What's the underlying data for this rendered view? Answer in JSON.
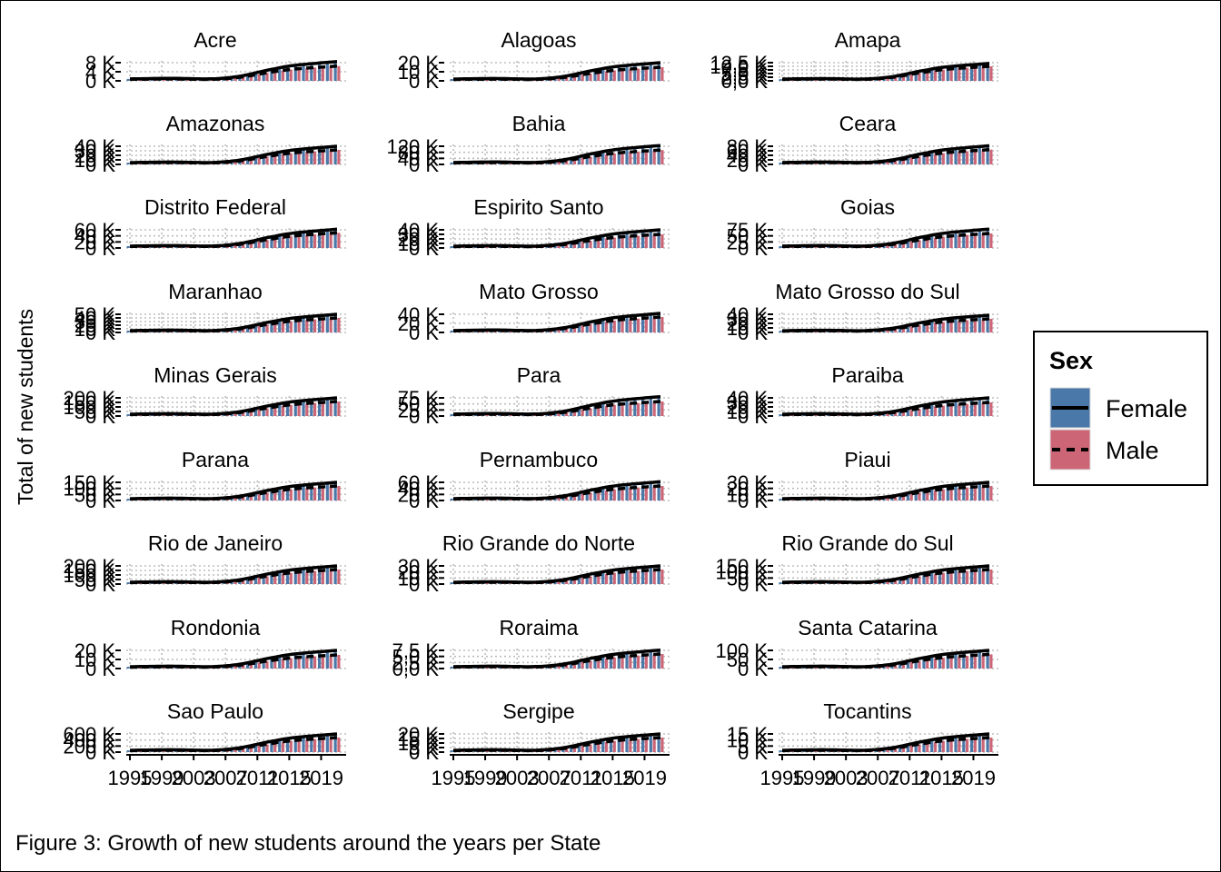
{
  "figure": {
    "caption": "Figure 3: Growth of new students around the years per State",
    "ylabel": "Total of new students"
  },
  "legend": {
    "title": "Sex",
    "entries": [
      {
        "label": "Female",
        "fill": "#4A78A8",
        "line": "solid"
      },
      {
        "label": "Male",
        "fill": "#CC6677",
        "line": "dashed"
      }
    ]
  },
  "colors": {
    "female_bar": "#4A78A8",
    "male_bar": "#CC6677",
    "grid": "#bdbdbd",
    "line": "#000000"
  },
  "chart_data": {
    "type": "bar",
    "facet_layout": {
      "rows": 9,
      "cols": 3
    },
    "x": [
      1995,
      1996,
      1997,
      1998,
      1999,
      2000,
      2001,
      2002,
      2003,
      2004,
      2005,
      2006,
      2007,
      2008,
      2009,
      2010,
      2011,
      2012,
      2013,
      2014,
      2015,
      2016,
      2017,
      2018,
      2019,
      2020,
      2021
    ],
    "x_tick_labels": [
      "1995",
      "1999",
      "2003",
      "2007",
      "2011",
      "2015",
      "2019"
    ],
    "series_overlay": "smoothed lines per sex: Female solid, Male dashed",
    "grid": true,
    "legend_position": "right",
    "y_unit": "K",
    "panels": [
      {
        "title": "Acre",
        "yticks": [
          "0 K",
          "4 K",
          "8 K"
        ],
        "ymax": 8,
        "female_peak": 8.5,
        "male_peak": 6.5
      },
      {
        "title": "Alagoas",
        "yticks": [
          "0 K",
          "10 K",
          "20 K"
        ],
        "ymax": 20,
        "female_peak": 20,
        "male_peak": 15
      },
      {
        "title": "Amapa",
        "yticks": [
          "0,0 K",
          "2,5 K",
          "5,0 K",
          "7,5 K",
          "10,0 K",
          "12,5 K"
        ],
        "ymax": 12.5,
        "female_peak": 12,
        "male_peak": 10
      },
      {
        "title": "Amazonas",
        "yticks": [
          "0 K",
          "10 K",
          "20 K",
          "30 K",
          "40 K"
        ],
        "ymax": 40,
        "female_peak": 40,
        "male_peak": 32
      },
      {
        "title": "Bahia",
        "yticks": [
          "0 K",
          "40 K",
          "80 K",
          "120 K"
        ],
        "ymax": 120,
        "female_peak": 125,
        "male_peak": 95
      },
      {
        "title": "Ceara",
        "yticks": [
          "0 K",
          "20 K",
          "40 K",
          "60 K",
          "80 K"
        ],
        "ymax": 80,
        "female_peak": 82,
        "male_peak": 65
      },
      {
        "title": "Distrito Federal",
        "yticks": [
          "0 K",
          "20 K",
          "40 K",
          "60 K"
        ],
        "ymax": 60,
        "female_peak": 62,
        "male_peak": 50
      },
      {
        "title": "Espirito Santo",
        "yticks": [
          "0 K",
          "10 K",
          "20 K",
          "30 K",
          "40 K"
        ],
        "ymax": 40,
        "female_peak": 40,
        "male_peak": 30
      },
      {
        "title": "Goias",
        "yticks": [
          "0 K",
          "25 K",
          "50 K",
          "75 K"
        ],
        "ymax": 75,
        "female_peak": 78,
        "male_peak": 60
      },
      {
        "title": "Maranhao",
        "yticks": [
          "0 K",
          "10 K",
          "20 K",
          "30 K",
          "40 K",
          "50 K"
        ],
        "ymax": 50,
        "female_peak": 50,
        "male_peak": 40
      },
      {
        "title": "Mato Grosso",
        "yticks": [
          "0 K",
          "20 K",
          "40 K"
        ],
        "ymax": 40,
        "female_peak": 42,
        "male_peak": 34
      },
      {
        "title": "Mato Grosso do Sul",
        "yticks": [
          "0 K",
          "10 K",
          "20 K",
          "30 K",
          "40 K"
        ],
        "ymax": 40,
        "female_peak": 38,
        "male_peak": 30
      },
      {
        "title": "Minas Gerais",
        "yticks": [
          "0 K",
          "50 K",
          "100 K",
          "150 K",
          "200 K"
        ],
        "ymax": 200,
        "female_peak": 200,
        "male_peak": 160
      },
      {
        "title": "Para",
        "yticks": [
          "0 K",
          "25 K",
          "50 K",
          "75 K"
        ],
        "ymax": 75,
        "female_peak": 80,
        "male_peak": 60
      },
      {
        "title": "Paraiba",
        "yticks": [
          "0 K",
          "10 K",
          "20 K",
          "30 K",
          "40 K"
        ],
        "ymax": 40,
        "female_peak": 40,
        "male_peak": 30
      },
      {
        "title": "Parana",
        "yticks": [
          "0 K",
          "50 K",
          "100 K",
          "150 K"
        ],
        "ymax": 150,
        "female_peak": 150,
        "male_peak": 120
      },
      {
        "title": "Pernambuco",
        "yticks": [
          "0 K",
          "20 K",
          "40 K",
          "60 K"
        ],
        "ymax": 60,
        "female_peak": 62,
        "male_peak": 48
      },
      {
        "title": "Piaui",
        "yticks": [
          "0 K",
          "10 K",
          "20 K",
          "30 K"
        ],
        "ymax": 30,
        "female_peak": 30,
        "male_peak": 24
      },
      {
        "title": "Rio de Janeiro",
        "yticks": [
          "0 K",
          "50 K",
          "100 K",
          "150 K",
          "200 K"
        ],
        "ymax": 200,
        "female_peak": 200,
        "male_peak": 160
      },
      {
        "title": "Rio Grande do Norte",
        "yticks": [
          "0 K",
          "10 K",
          "20 K",
          "30 K"
        ],
        "ymax": 30,
        "female_peak": 30,
        "male_peak": 24
      },
      {
        "title": "Rio Grande do Sul",
        "yticks": [
          "0 K",
          "50 K",
          "100 K",
          "150 K"
        ],
        "ymax": 150,
        "female_peak": 150,
        "male_peak": 120
      },
      {
        "title": "Rondonia",
        "yticks": [
          "0 K",
          "10 K",
          "20 K"
        ],
        "ymax": 20,
        "female_peak": 20,
        "male_peak": 15
      },
      {
        "title": "Roraima",
        "yticks": [
          "0,0 K",
          "2,5 K",
          "5,0 K",
          "7,5 K"
        ],
        "ymax": 7.5,
        "female_peak": 7.6,
        "male_peak": 6
      },
      {
        "title": "Santa Catarina",
        "yticks": [
          "0 K",
          "50 K",
          "100 K"
        ],
        "ymax": 100,
        "female_peak": 100,
        "male_peak": 78
      },
      {
        "title": "Sao Paulo",
        "yticks": [
          "0 K",
          "200 K",
          "400 K",
          "600 K"
        ],
        "ymax": 600,
        "female_peak": 600,
        "male_peak": 480
      },
      {
        "title": "Sergipe",
        "yticks": [
          "0 K",
          "5 K",
          "10 K",
          "15 K",
          "20 K"
        ],
        "ymax": 20,
        "female_peak": 20,
        "male_peak": 16
      },
      {
        "title": "Tocantins",
        "yticks": [
          "0 K",
          "5 K",
          "10 K",
          "15 K"
        ],
        "ymax": 15,
        "female_peak": 15,
        "male_peak": 12
      }
    ]
  }
}
